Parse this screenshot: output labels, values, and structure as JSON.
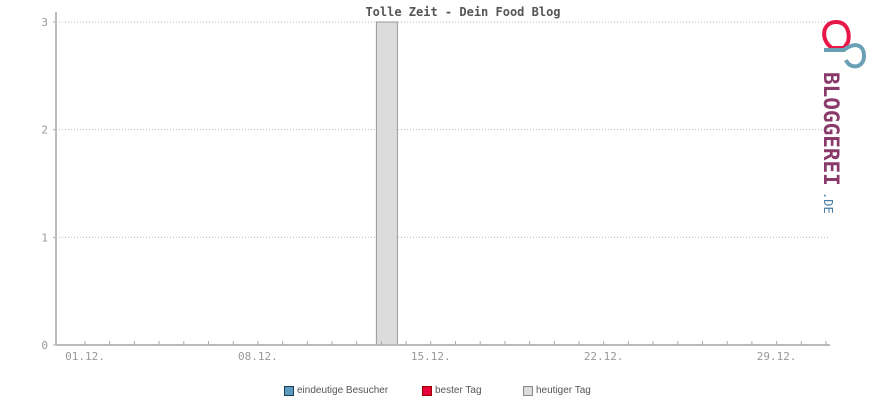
{
  "chart_data": {
    "type": "bar",
    "title": "Tolle Zeit - Dein Food Blog",
    "x_range": [
      "01.12.",
      "31.12."
    ],
    "x_ticks": [
      "01.12.",
      "08.12.",
      "15.12.",
      "22.12.",
      "29.12."
    ],
    "ylim": [
      0,
      3
    ],
    "y_ticks": [
      "0",
      "1",
      "2",
      "3"
    ],
    "grid": true,
    "series": [
      {
        "name": "eindeutige Besucher",
        "color": "#5b9bbf",
        "values": []
      },
      {
        "name": "bester Tag",
        "color": "#e8003a",
        "values": []
      },
      {
        "name": "heutiger Tag",
        "color": "#dcdcdc",
        "values": [
          {
            "x": "13.12.",
            "y": 3
          }
        ]
      }
    ],
    "legend_position": "bottom"
  },
  "logo": {
    "text": "BLOGGEREI.DE"
  }
}
